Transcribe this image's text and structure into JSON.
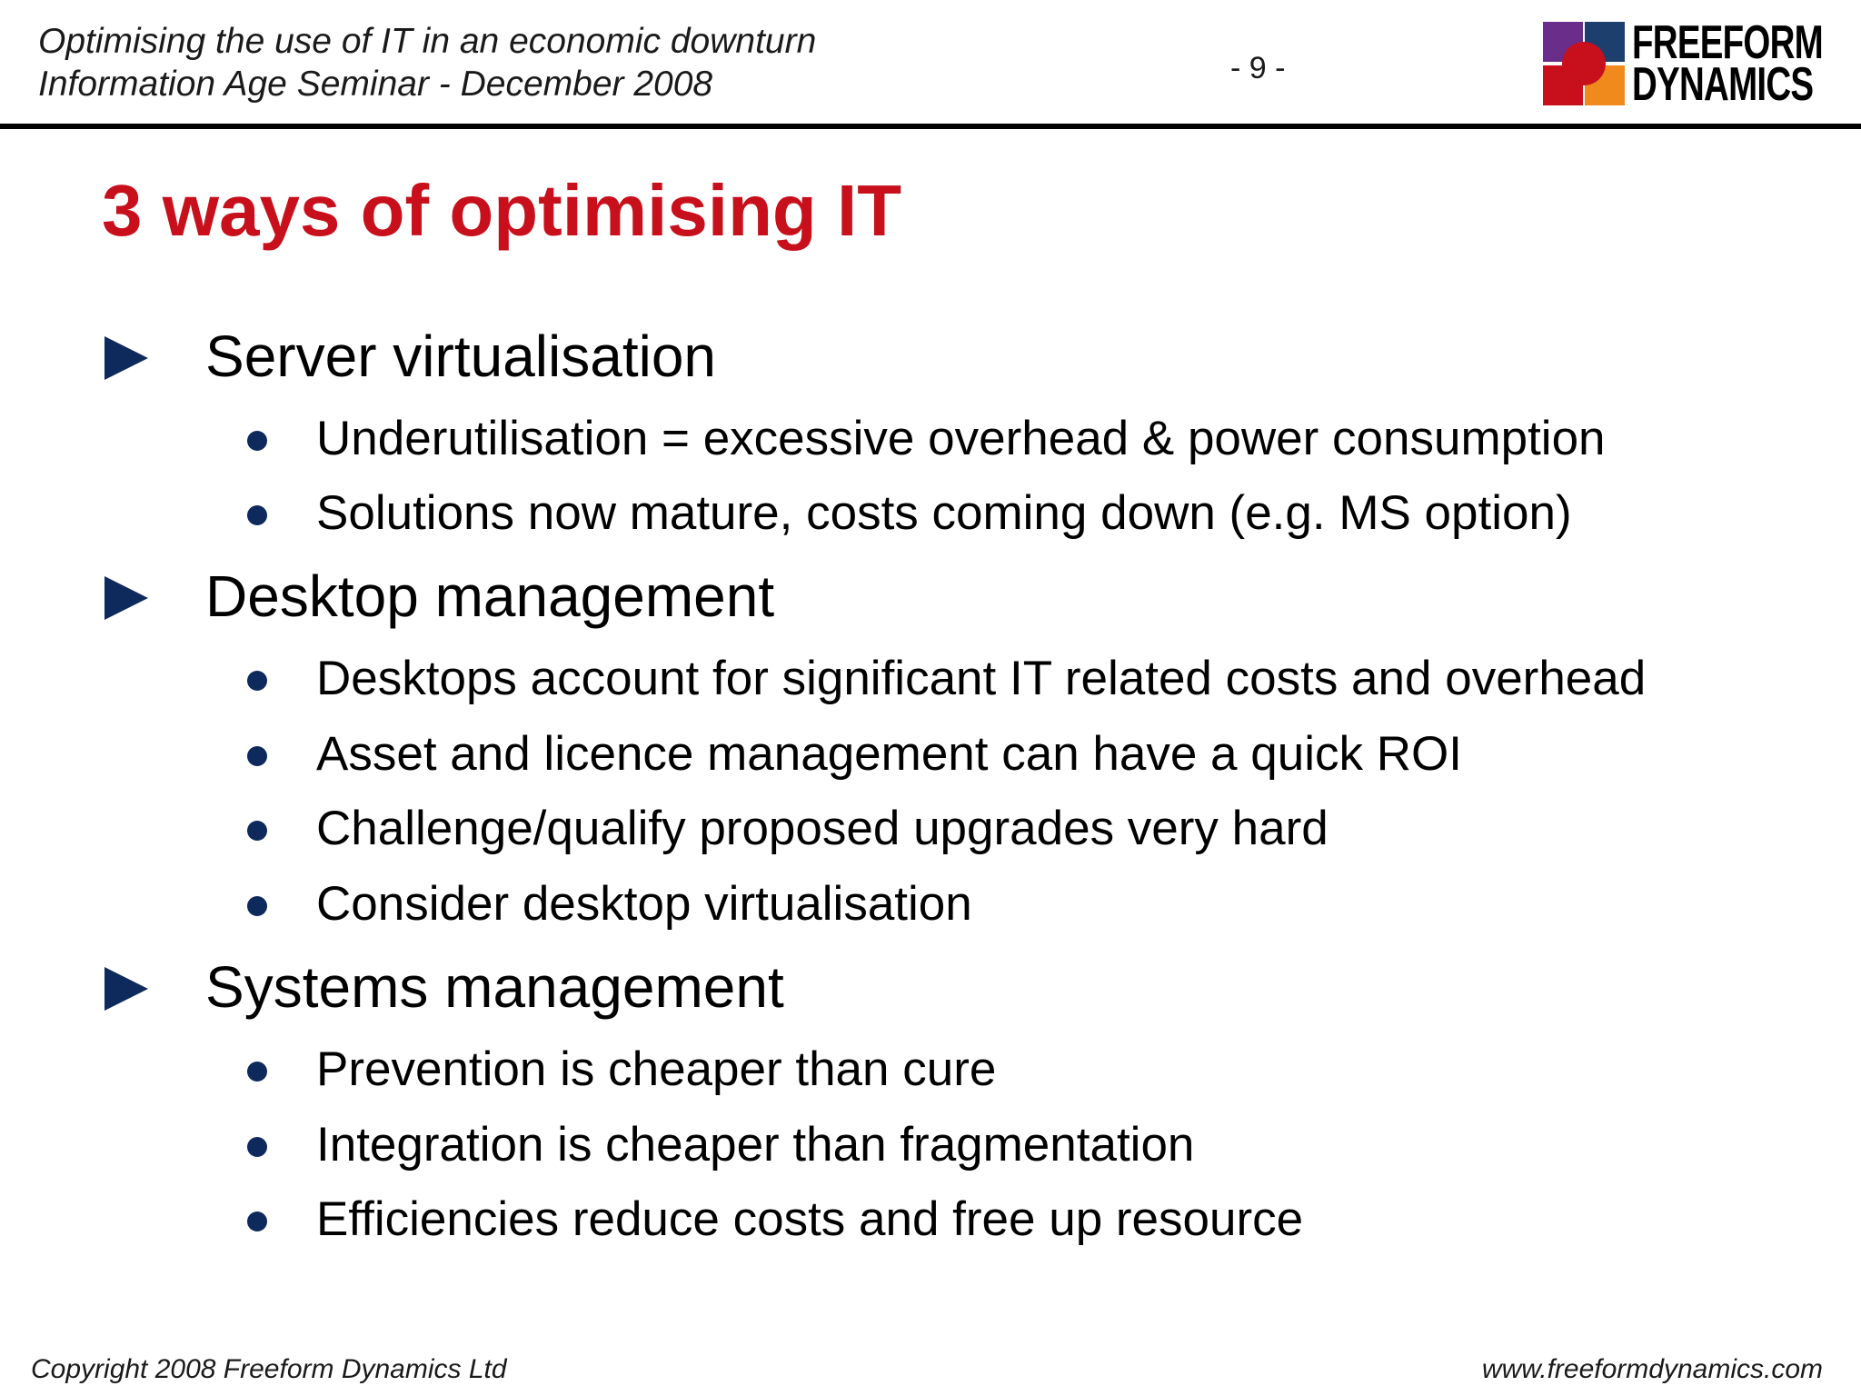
{
  "header": {
    "line1": "Optimising the use of IT in an economic downturn",
    "line2": "Information Age Seminar - December 2008",
    "page_number": "- 9 -"
  },
  "logo": {
    "line1": "FREEFORM",
    "line2": "DYNAMICS",
    "colors": {
      "purple": "#6b2d8a",
      "blue": "#1d3f6e",
      "red": "#c8101c",
      "orange": "#f08a1c"
    }
  },
  "title": "3 ways of optimising IT",
  "colors": {
    "title": "#c8101c",
    "arrow": "#0e2a5c",
    "bullet": "#0e2a5c"
  },
  "sections": [
    {
      "heading": "Server virtualisation",
      "bullets": [
        "Underutilisation = excessive overhead & power consumption",
        "Solutions now mature, costs coming down (e.g. MS option)"
      ]
    },
    {
      "heading": "Desktop management",
      "bullets": [
        "Desktops account for significant IT related costs and overhead",
        "Asset and licence management can have a quick ROI",
        "Challenge/qualify proposed upgrades very hard",
        "Consider desktop virtualisation"
      ]
    },
    {
      "heading": "Systems management",
      "bullets": [
        "Prevention is cheaper than cure",
        "Integration is cheaper than fragmentation",
        "Efficiencies reduce costs and free up resource"
      ]
    }
  ],
  "footer": {
    "copyright": "Copyright 2008 Freeform Dynamics Ltd",
    "website": "www.freeformdynamics.com"
  }
}
